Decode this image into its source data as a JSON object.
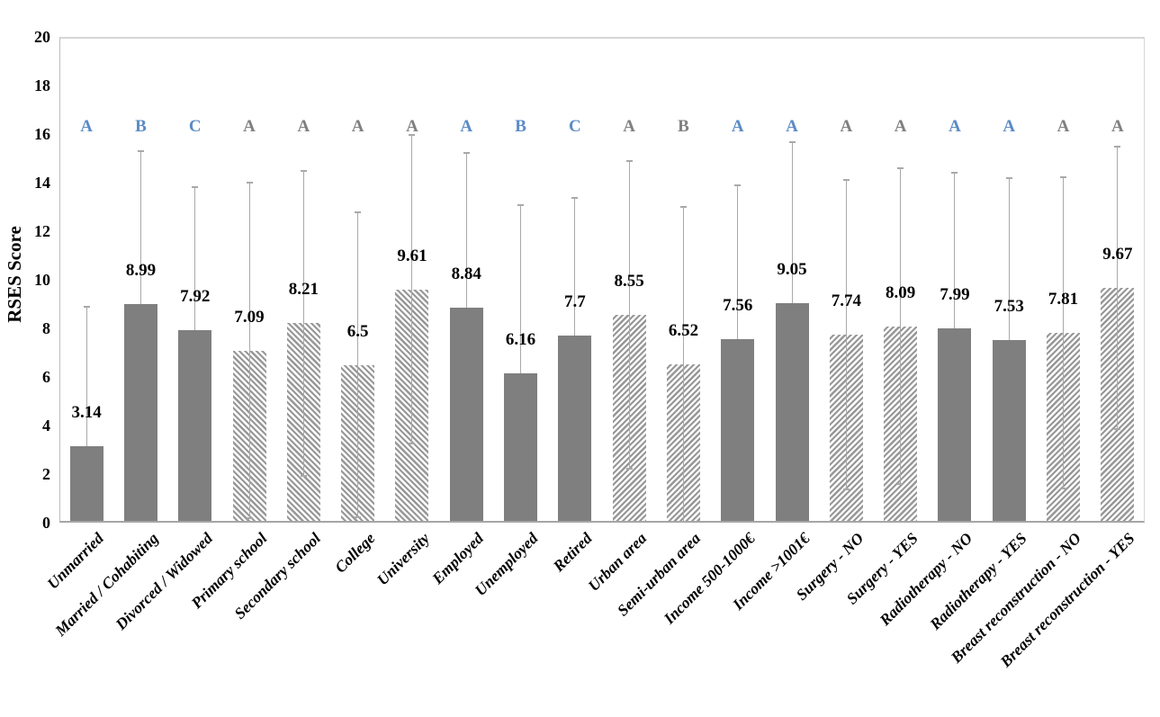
{
  "chart_data": {
    "type": "bar",
    "title": "",
    "xlabel": "",
    "ylabel": "RSES Score",
    "ylim": [
      0,
      20
    ],
    "yticks": [
      0,
      2,
      4,
      6,
      8,
      10,
      12,
      14,
      16,
      18,
      20
    ],
    "grid": false,
    "legend": "none",
    "categories": [
      "Unmarried",
      "Married / Cohabiting",
      "Divorced / Widowed",
      "Primary school",
      "Secondary school",
      "College",
      "University",
      "Employed",
      "Unemployed",
      "Retired",
      "Urban area",
      "Semi-urban area",
      "Income 500-1000€",
      "Income >1001€",
      "Surgery - NO",
      "Surgery - YES",
      "Radiotherapy - NO",
      "Radiotherapy - YES",
      "Breast reconstruction - NO",
      "Breast reconstruction - YES"
    ],
    "values": [
      3.14,
      8.99,
      7.92,
      7.09,
      8.21,
      6.5,
      9.61,
      8.84,
      6.16,
      7.7,
      8.55,
      6.52,
      7.56,
      9.05,
      7.74,
      8.09,
      7.99,
      7.53,
      7.81,
      9.67
    ],
    "value_labels": [
      "3.14",
      "8.99",
      "7.92",
      "7.09",
      "8.21",
      "6.5",
      "9.61",
      "8.84",
      "6.16",
      "7.7",
      "8.55",
      "6.52",
      "7.56",
      "9.05",
      "7.74",
      "8.09",
      "7.99",
      "7.53",
      "7.81",
      "9.67"
    ],
    "error_sd": [
      5.75,
      6.29,
      5.91,
      6.92,
      6.27,
      6.28,
      6.35,
      6.38,
      6.93,
      5.67,
      6.33,
      6.48,
      6.33,
      6.6,
      6.37,
      6.51,
      6.41,
      6.64,
      6.42,
      5.8
    ],
    "bar_patterns": [
      "solid",
      "solid",
      "solid",
      "hatch-down",
      "hatch-down",
      "hatch-down",
      "hatch-down",
      "solid",
      "solid",
      "solid",
      "hatch-up",
      "hatch-up",
      "solid",
      "solid",
      "hatch-up",
      "hatch-up",
      "solid",
      "solid",
      "hatch-up",
      "hatch-up"
    ],
    "sig_letters": [
      "A",
      "B",
      "C",
      "A",
      "A",
      "A",
      "A",
      "A",
      "B",
      "C",
      "A",
      "B",
      "A",
      "A",
      "A",
      "A",
      "A",
      "A",
      "A",
      "A"
    ],
    "sig_letter_colors": [
      "blue",
      "blue",
      "blue",
      "gray",
      "gray",
      "gray",
      "gray",
      "blue",
      "blue",
      "blue",
      "gray",
      "gray",
      "blue",
      "blue",
      "gray",
      "gray",
      "blue",
      "blue",
      "gray",
      "gray"
    ]
  },
  "colors": {
    "bar_solid": "#7f7f7f",
    "hatch_stripe": "#979797",
    "error_bar": "#a9a9a9",
    "letter_blue": "#5b8bc4",
    "letter_gray": "#808080",
    "axis_line": "#a6a6a6",
    "plot_border": "#d6d6d6"
  }
}
